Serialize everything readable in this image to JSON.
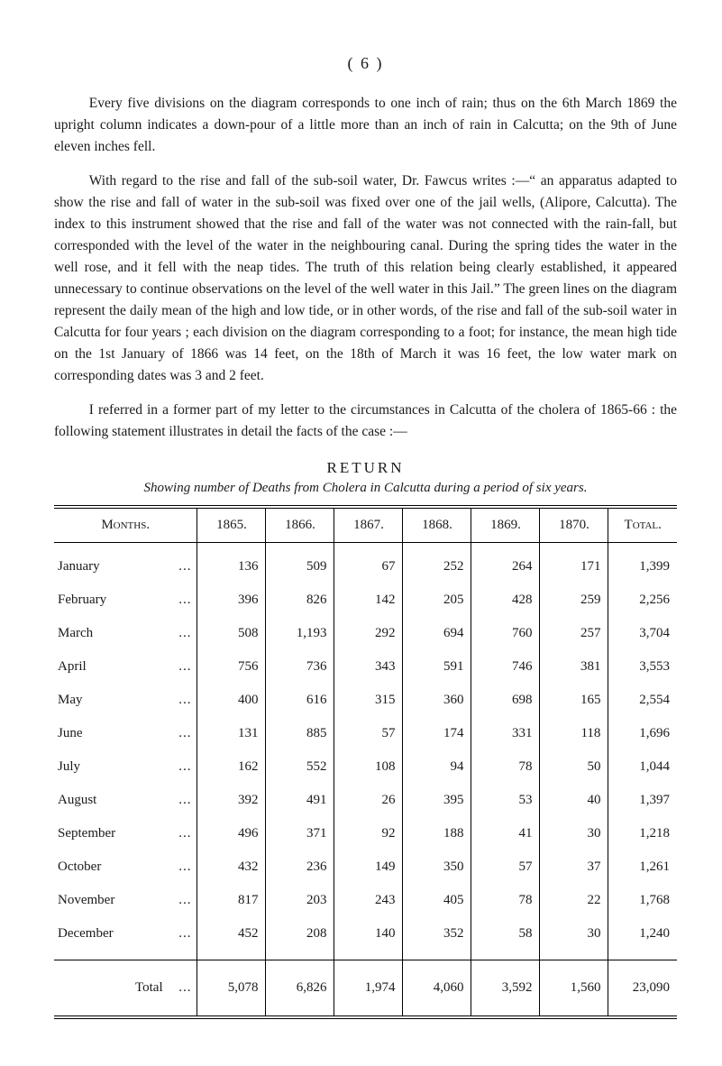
{
  "page_number_display": "(  6  )",
  "paragraphs": [
    "Every five divisions on the diagram corresponds to one inch of rain; thus on the 6th March 1869 the upright column indicates a down-pour of a little more than an inch of rain in Calcutta; on the 9th of June eleven inches fell.",
    "With regard to the rise and fall of the sub-soil water, Dr. Fawcus writes :—“ an apparatus adapted to show the rise and fall of water in the sub-soil was fixed over one of the jail wells, (Alipore, Calcutta). The index to this instrument showed that the rise and fall of the water was not connected with the rain-fall, but corresponded with the level of the water in the neighbouring canal. During the spring tides the water in the well rose, and it fell with the neap tides. The truth of this relation being clearly established, it appeared unnecessary to continue observations on the level of the well water in this Jail.” The green lines on the diagram represent the daily mean of the high and low tide, or in other words, of the rise and fall of the sub-soil water in Calcutta for four years ; each division on the diagram corresponding to a foot; for instance, the mean high tide on the 1st January of 1866 was 14 feet, on the 18th of March it was 16 feet, the low water mark on corresponding dates was 3 and 2 feet.",
    "I referred in a former part of my letter to the circumstances in Calcutta of the cholera of 1865-66 : the following statement illustrates in detail the facts of the case :—"
  ],
  "return_heading": "RETURN",
  "return_subtitle": "Showing number of Deaths from Cholera in Calcutta during a period of six years.",
  "table": {
    "head": {
      "months": "Months.",
      "years": [
        "1865.",
        "1866.",
        "1867.",
        "1868.",
        "1869.",
        "1870."
      ],
      "total": "Total."
    },
    "rows": [
      {
        "month": "January",
        "vals": [
          "136",
          "509",
          "67",
          "252",
          "264",
          "171",
          "1,399"
        ]
      },
      {
        "month": "February",
        "vals": [
          "396",
          "826",
          "142",
          "205",
          "428",
          "259",
          "2,256"
        ]
      },
      {
        "month": "March",
        "vals": [
          "508",
          "1,193",
          "292",
          "694",
          "760",
          "257",
          "3,704"
        ]
      },
      {
        "month": "April",
        "vals": [
          "756",
          "736",
          "343",
          "591",
          "746",
          "381",
          "3,553"
        ]
      },
      {
        "month": "May",
        "vals": [
          "400",
          "616",
          "315",
          "360",
          "698",
          "165",
          "2,554"
        ]
      },
      {
        "month": "June",
        "vals": [
          "131",
          "885",
          "57",
          "174",
          "331",
          "118",
          "1,696"
        ]
      },
      {
        "month": "July",
        "vals": [
          "162",
          "552",
          "108",
          "94",
          "78",
          "50",
          "1,044"
        ]
      },
      {
        "month": "August",
        "vals": [
          "392",
          "491",
          "26",
          "395",
          "53",
          "40",
          "1,397"
        ]
      },
      {
        "month": "September",
        "vals": [
          "496",
          "371",
          "92",
          "188",
          "41",
          "30",
          "1,218"
        ]
      },
      {
        "month": "October",
        "vals": [
          "432",
          "236",
          "149",
          "350",
          "57",
          "37",
          "1,261"
        ]
      },
      {
        "month": "November",
        "vals": [
          "817",
          "203",
          "243",
          "405",
          "78",
          "22",
          "1,768"
        ]
      },
      {
        "month": "December",
        "vals": [
          "452",
          "208",
          "140",
          "352",
          "58",
          "30",
          "1,240"
        ]
      }
    ],
    "footer": {
      "label": "Total",
      "vals": [
        "5,078",
        "6,826",
        "1,974",
        "4,060",
        "3,592",
        "1,560",
        "23,090"
      ]
    }
  }
}
